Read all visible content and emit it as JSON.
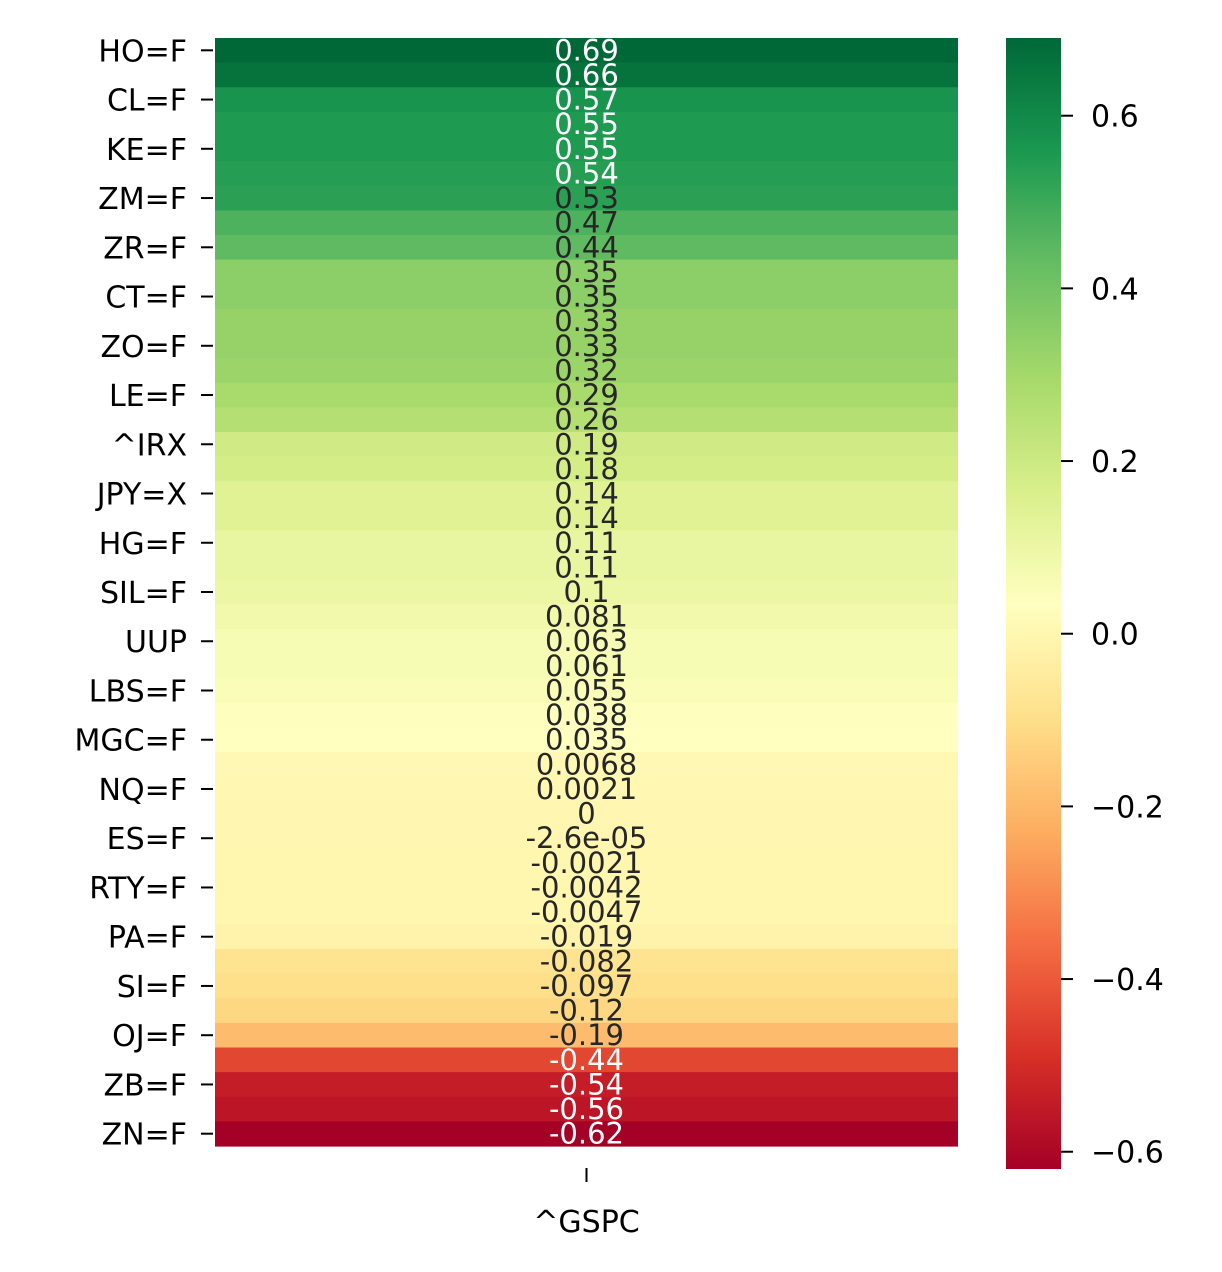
{
  "chart_data": {
    "type": "heatmap",
    "colormap": "RdYlGn",
    "x_categories": [
      "^GSPC"
    ],
    "rows": [
      {
        "label": "HO=F",
        "value": 0.69,
        "text": "0.69"
      },
      {
        "label": "",
        "value": 0.66,
        "text": "0.66"
      },
      {
        "label": "CL=F",
        "value": 0.57,
        "text": "0.57"
      },
      {
        "label": "",
        "value": 0.55,
        "text": "0.55"
      },
      {
        "label": "KE=F",
        "value": 0.55,
        "text": "0.55"
      },
      {
        "label": "",
        "value": 0.54,
        "text": "0.54"
      },
      {
        "label": "ZM=F",
        "value": 0.53,
        "text": "0.53"
      },
      {
        "label": "",
        "value": 0.47,
        "text": "0.47"
      },
      {
        "label": "ZR=F",
        "value": 0.44,
        "text": "0.44"
      },
      {
        "label": "",
        "value": 0.35,
        "text": "0.35"
      },
      {
        "label": "CT=F",
        "value": 0.35,
        "text": "0.35"
      },
      {
        "label": "",
        "value": 0.33,
        "text": "0.33"
      },
      {
        "label": "ZO=F",
        "value": 0.33,
        "text": "0.33"
      },
      {
        "label": "",
        "value": 0.32,
        "text": "0.32"
      },
      {
        "label": "LE=F",
        "value": 0.29,
        "text": "0.29"
      },
      {
        "label": "",
        "value": 0.26,
        "text": "0.26"
      },
      {
        "label": "^IRX",
        "value": 0.19,
        "text": "0.19"
      },
      {
        "label": "",
        "value": 0.18,
        "text": "0.18"
      },
      {
        "label": "JPY=X",
        "value": 0.14,
        "text": "0.14"
      },
      {
        "label": "",
        "value": 0.14,
        "text": "0.14"
      },
      {
        "label": "HG=F",
        "value": 0.11,
        "text": "0.11"
      },
      {
        "label": "",
        "value": 0.11,
        "text": "0.11"
      },
      {
        "label": "SIL=F",
        "value": 0.1,
        "text": "0.1"
      },
      {
        "label": "",
        "value": 0.081,
        "text": "0.081"
      },
      {
        "label": "UUP",
        "value": 0.063,
        "text": "0.063"
      },
      {
        "label": "",
        "value": 0.061,
        "text": "0.061"
      },
      {
        "label": "LBS=F",
        "value": 0.055,
        "text": "0.055"
      },
      {
        "label": "",
        "value": 0.038,
        "text": "0.038"
      },
      {
        "label": "MGC=F",
        "value": 0.035,
        "text": "0.035"
      },
      {
        "label": "",
        "value": 0.0068,
        "text": "0.0068"
      },
      {
        "label": "NQ=F",
        "value": 0.0021,
        "text": "0.0021"
      },
      {
        "label": "",
        "value": 0,
        "text": "0"
      },
      {
        "label": "ES=F",
        "value": -2.6e-05,
        "text": "-2.6e-05"
      },
      {
        "label": "",
        "value": -0.0021,
        "text": "-0.0021"
      },
      {
        "label": "RTY=F",
        "value": -0.0042,
        "text": "-0.0042"
      },
      {
        "label": "",
        "value": -0.0047,
        "text": "-0.0047"
      },
      {
        "label": "PA=F",
        "value": -0.019,
        "text": "-0.019"
      },
      {
        "label": "",
        "value": -0.082,
        "text": "-0.082"
      },
      {
        "label": "SI=F",
        "value": -0.097,
        "text": "-0.097"
      },
      {
        "label": "",
        "value": -0.12,
        "text": "-0.12"
      },
      {
        "label": "OJ=F",
        "value": -0.19,
        "text": "-0.19"
      },
      {
        "label": "",
        "value": -0.44,
        "text": "-0.44"
      },
      {
        "label": "ZB=F",
        "value": -0.54,
        "text": "-0.54"
      },
      {
        "label": "",
        "value": -0.56,
        "text": "-0.56"
      },
      {
        "label": "ZN=F",
        "value": -0.62,
        "text": "-0.62"
      }
    ],
    "colorbar": {
      "vmin": -0.62,
      "vmax": 0.69,
      "ticks": [
        0.6,
        0.4,
        0.2,
        0.0,
        -0.2,
        -0.4,
        -0.6
      ],
      "tick_labels": [
        "0.6",
        "0.4",
        "0.2",
        "0.0",
        "−0.2",
        "−0.4",
        "−0.6"
      ]
    },
    "annotation_colors": {
      "dark_bg": "#ffffff",
      "light_bg": "#262626"
    }
  }
}
